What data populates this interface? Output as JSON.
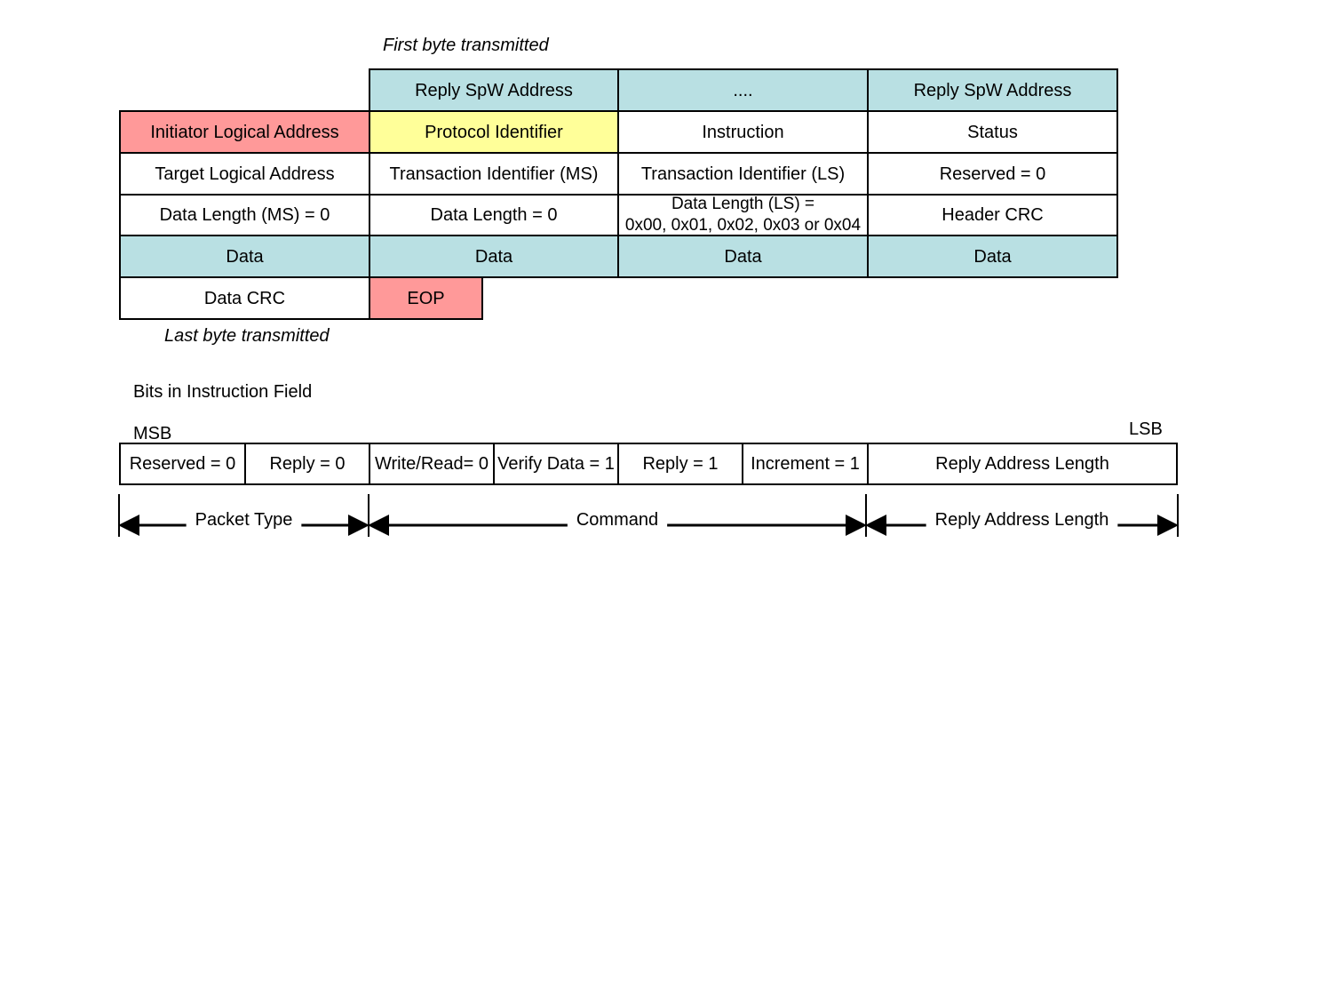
{
  "colors": {
    "blue": "#b9e0e3",
    "pink": "#ff9999",
    "yellow": "#ffff99",
    "white": "#ffffff"
  },
  "packet": {
    "first_byte_label": "First byte transmitted",
    "last_byte_label": "Last byte transmitted",
    "rows": [
      [
        null,
        {
          "text": "Reply SpW Address",
          "color": "blue"
        },
        {
          "text": "....",
          "color": "blue"
        },
        {
          "text": "Reply SpW Address",
          "color": "blue"
        }
      ],
      [
        {
          "text": "Initiator Logical Address",
          "color": "pink"
        },
        {
          "text": "Protocol Identifier",
          "color": "yellow"
        },
        {
          "text": "Instruction",
          "color": "white"
        },
        {
          "text": "Status",
          "color": "white"
        }
      ],
      [
        {
          "text": "Target Logical Address",
          "color": "white"
        },
        {
          "text": "Transaction Identifier (MS)",
          "color": "white"
        },
        {
          "text": "Transaction Identifier (LS)",
          "color": "white"
        },
        {
          "text": "Reserved = 0",
          "color": "white"
        }
      ],
      [
        {
          "text": "Data Length (MS) = 0",
          "color": "white"
        },
        {
          "text": "Data Length = 0",
          "color": "white"
        },
        {
          "text": "Data Length (LS) =\n0x00, 0x01, 0x02, 0x03 or 0x04",
          "color": "white"
        },
        {
          "text": "Header CRC",
          "color": "white"
        }
      ],
      [
        {
          "text": "Data",
          "color": "blue"
        },
        {
          "text": "Data",
          "color": "blue"
        },
        {
          "text": "Data",
          "color": "blue"
        },
        {
          "text": "Data",
          "color": "blue"
        }
      ],
      [
        {
          "text": "Data CRC",
          "color": "white"
        },
        {
          "text": "EOP",
          "color": "pink",
          "narrow": true
        },
        null,
        null
      ]
    ]
  },
  "instruction": {
    "title": "Bits in Instruction Field",
    "msb": "MSB",
    "lsb": "LSB",
    "bits": [
      "Reserved = 0",
      "Reply = 0",
      "Write/Read= 0",
      "Verify Data = 1",
      "Reply = 1",
      "Increment = 1",
      "Reply Address Length"
    ],
    "groups": [
      "Packet Type",
      "Command",
      "Reply Address Length"
    ]
  }
}
